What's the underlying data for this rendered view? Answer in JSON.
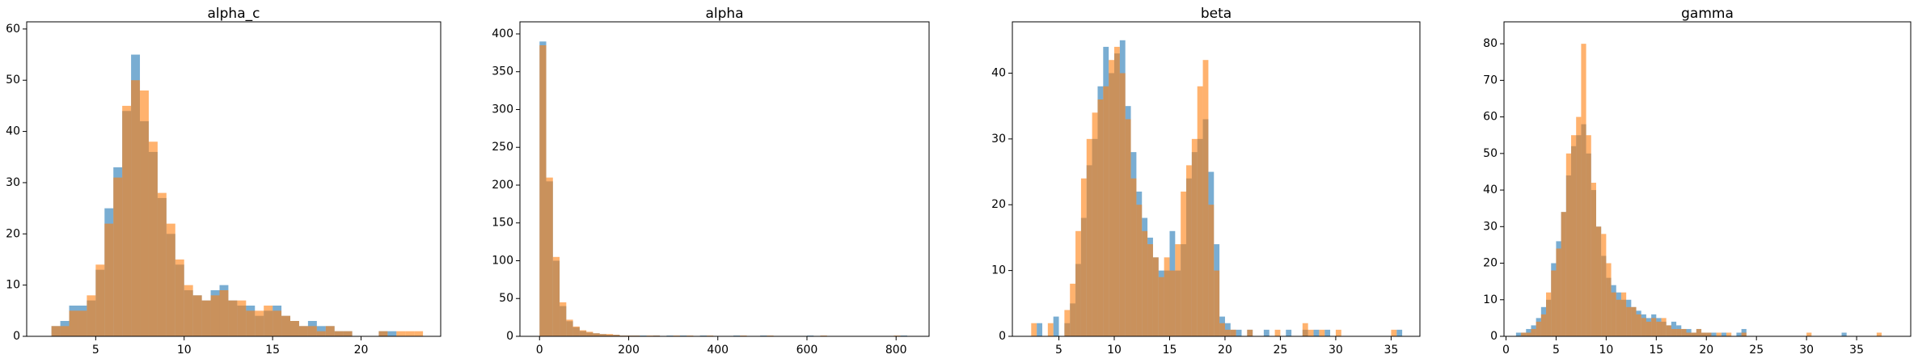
{
  "chart_data": [
    {
      "type": "histogram",
      "title": "alpha_c",
      "alpha": 0.6,
      "bins": [
        2.5,
        3,
        3.5,
        4,
        4.5,
        5,
        5.5,
        6,
        6.5,
        7,
        7.5,
        8,
        8.5,
        9,
        9.5,
        10,
        10.5,
        11,
        11.5,
        12,
        12.5,
        13,
        13.5,
        14,
        14.5,
        15,
        15.5,
        16,
        16.5,
        17,
        17.5,
        18,
        18.5,
        19,
        19.5,
        20,
        20.5,
        21,
        21.5,
        22,
        22.5,
        23,
        23.5
      ],
      "series": [
        {
          "color": "#1f77b4",
          "values": [
            2,
            3,
            6,
            6,
            7,
            13,
            25,
            33,
            44,
            55,
            42,
            36,
            27,
            20,
            14,
            9,
            8,
            7,
            9,
            10,
            7,
            6,
            6,
            4,
            5,
            6,
            4,
            3,
            2,
            3,
            2,
            2,
            1,
            1,
            0,
            0,
            0,
            1,
            1,
            0,
            0,
            0
          ]
        },
        {
          "color": "#ff7f0e",
          "values": [
            2,
            2,
            5,
            5,
            8,
            14,
            22,
            31,
            45,
            50,
            48,
            38,
            28,
            22,
            15,
            10,
            8,
            7,
            8,
            9,
            7,
            7,
            5,
            5,
            6,
            5,
            4,
            3,
            2,
            2,
            1,
            2,
            1,
            1,
            0,
            0,
            0,
            1,
            0,
            1,
            1,
            1
          ]
        }
      ],
      "xlim": [
        1.1,
        24.5
      ],
      "xticks": [
        5,
        10,
        15,
        20
      ],
      "ylim": [
        0,
        61.4
      ],
      "yticks": [
        0,
        10,
        20,
        30,
        40,
        50,
        60
      ]
    },
    {
      "type": "histogram",
      "title": "alpha",
      "alpha": 0.6,
      "bins": [
        0,
        15,
        30,
        45,
        60,
        75,
        90,
        105,
        120,
        135,
        150,
        165,
        180,
        195,
        210,
        225,
        240,
        255,
        270,
        285,
        300,
        315,
        330,
        345,
        360,
        375,
        390,
        405,
        420,
        435,
        450,
        465,
        480,
        495,
        510,
        525,
        540,
        555,
        570,
        585,
        600,
        615,
        630,
        645,
        660,
        675,
        690,
        705,
        720,
        735,
        750,
        765,
        780,
        795,
        810,
        825
      ],
      "series": [
        {
          "color": "#1f77b4",
          "values": [
            390,
            205,
            100,
            40,
            20,
            12,
            7,
            5,
            4,
            3,
            2,
            2,
            1,
            1,
            1,
            1,
            0,
            1,
            0,
            1,
            0,
            1,
            0,
            0,
            1,
            0,
            0,
            0,
            0,
            1,
            0,
            0,
            0,
            1,
            0,
            0,
            0,
            0,
            0,
            0,
            1,
            0,
            0,
            0,
            0,
            0,
            0,
            0,
            0,
            0,
            0,
            0,
            0,
            0,
            1
          ]
        },
        {
          "color": "#ff7f0e",
          "values": [
            385,
            210,
            105,
            45,
            22,
            13,
            8,
            6,
            4,
            3,
            3,
            2,
            1,
            1,
            1,
            0,
            1,
            1,
            0,
            0,
            1,
            0,
            1,
            0,
            0,
            1,
            0,
            0,
            0,
            0,
            1,
            0,
            0,
            0,
            1,
            0,
            0,
            0,
            0,
            0,
            0,
            0,
            1,
            0,
            0,
            0,
            0,
            0,
            0,
            0,
            0,
            0,
            0,
            1,
            0
          ]
        }
      ],
      "xlim": [
        -44,
        874
      ],
      "xticks": [
        0,
        200,
        400,
        600,
        800
      ],
      "ylim": [
        0,
        416
      ],
      "yticks": [
        0,
        50,
        100,
        150,
        200,
        250,
        300,
        350,
        400
      ]
    },
    {
      "type": "histogram",
      "title": "beta",
      "alpha": 0.6,
      "bins": [
        2.5,
        3,
        3.5,
        4,
        4.5,
        5,
        5.5,
        6,
        6.5,
        7,
        7.5,
        8,
        8.5,
        9,
        9.5,
        10,
        10.5,
        11,
        11.5,
        12,
        12.5,
        13,
        13.5,
        14,
        14.5,
        15,
        15.5,
        16,
        16.5,
        17,
        17.5,
        18,
        18.5,
        19,
        19.5,
        20,
        20.5,
        21,
        21.5,
        22,
        22.5,
        23,
        23.5,
        24,
        24.5,
        25,
        25.5,
        26,
        26.5,
        27,
        27.5,
        28,
        28.5,
        29,
        29.5,
        30,
        30.5,
        31,
        31.5,
        32,
        32.5,
        33,
        33.5,
        34,
        34.5,
        35,
        35.5,
        36,
        36.5
      ],
      "series": [
        {
          "color": "#1f77b4",
          "values": [
            0,
            2,
            0,
            0,
            3,
            0,
            2,
            5,
            11,
            18,
            26,
            30,
            38,
            44,
            40,
            43,
            45,
            35,
            28,
            22,
            18,
            15,
            12,
            10,
            10,
            16,
            10,
            14,
            24,
            28,
            30,
            33,
            25,
            14,
            3,
            2,
            1,
            1,
            0,
            1,
            0,
            0,
            1,
            0,
            0,
            0,
            1,
            0,
            0,
            1,
            0,
            1,
            0,
            1,
            0,
            0,
            0,
            0,
            0,
            0,
            0,
            0,
            0,
            0,
            0,
            0,
            1,
            0
          ]
        },
        {
          "color": "#ff7f0e",
          "values": [
            2,
            0,
            0,
            2,
            0,
            0,
            4,
            8,
            16,
            24,
            30,
            34,
            36,
            38,
            42,
            44,
            40,
            33,
            24,
            20,
            16,
            14,
            12,
            9,
            12,
            10,
            14,
            22,
            26,
            30,
            38,
            42,
            20,
            10,
            2,
            1,
            1,
            0,
            0,
            1,
            0,
            0,
            0,
            0,
            1,
            0,
            0,
            0,
            0,
            2,
            1,
            0,
            1,
            0,
            0,
            1,
            0,
            0,
            0,
            0,
            0,
            0,
            0,
            0,
            0,
            1,
            0,
            0
          ]
        }
      ],
      "xlim": [
        0.8,
        37.6
      ],
      "xticks": [
        5,
        10,
        15,
        20,
        25,
        30,
        35
      ],
      "ylim": [
        0,
        47.8
      ],
      "yticks": [
        0,
        10,
        20,
        30,
        40
      ]
    },
    {
      "type": "histogram",
      "title": "gamma",
      "alpha": 0.6,
      "bins": [
        1,
        1.5,
        2,
        2.5,
        3,
        3.5,
        4,
        4.5,
        5,
        5.5,
        6,
        6.5,
        7,
        7.5,
        8,
        8.5,
        9,
        9.5,
        10,
        10.5,
        11,
        11.5,
        12,
        12.5,
        13,
        13.5,
        14,
        14.5,
        15,
        15.5,
        16,
        16.5,
        17,
        17.5,
        18,
        18.5,
        19,
        19.5,
        20,
        20.5,
        21,
        21.5,
        22,
        22.5,
        23,
        23.5,
        24,
        24.5,
        25,
        25.5,
        26,
        26.5,
        27,
        27.5,
        28,
        28.5,
        29,
        29.5,
        30,
        30.5,
        31,
        31.5,
        32,
        32.5,
        33,
        33.5,
        34,
        34.5,
        35,
        35.5,
        36,
        36.5,
        37,
        37.5,
        38
      ],
      "series": [
        {
          "color": "#1f77b4",
          "values": [
            1,
            1,
            2,
            3,
            5,
            8,
            10,
            20,
            26,
            34,
            44,
            52,
            55,
            58,
            50,
            40,
            30,
            22,
            16,
            14,
            12,
            10,
            10,
            8,
            7,
            6,
            5,
            6,
            5,
            4,
            3,
            4,
            3,
            2,
            2,
            1,
            2,
            1,
            1,
            1,
            0,
            1,
            0,
            0,
            1,
            2,
            0,
            0,
            0,
            0,
            0,
            0,
            0,
            0,
            0,
            0,
            0,
            0,
            0,
            0,
            0,
            0,
            0,
            0,
            0,
            1,
            0,
            0,
            0,
            0,
            0,
            0,
            0,
            0
          ]
        },
        {
          "color": "#ff7f0e",
          "values": [
            0,
            1,
            1,
            2,
            4,
            6,
            12,
            18,
            24,
            34,
            50,
            55,
            60,
            80,
            55,
            42,
            30,
            28,
            20,
            12,
            10,
            12,
            8,
            8,
            6,
            5,
            4,
            5,
            4,
            5,
            3,
            2,
            2,
            2,
            1,
            1,
            2,
            1,
            1,
            0,
            1,
            0,
            1,
            0,
            0,
            1,
            0,
            0,
            0,
            0,
            0,
            0,
            0,
            0,
            0,
            0,
            0,
            0,
            1,
            0,
            0,
            0,
            0,
            0,
            0,
            0,
            0,
            0,
            0,
            0,
            0,
            0,
            1,
            0
          ]
        }
      ],
      "xlim": [
        -0.2,
        40.4
      ],
      "xticks": [
        0,
        5,
        10,
        15,
        20,
        25,
        30,
        35
      ],
      "ylim": [
        0,
        86
      ],
      "yticks": [
        0,
        10,
        20,
        30,
        40,
        50,
        60,
        70,
        80
      ]
    }
  ]
}
